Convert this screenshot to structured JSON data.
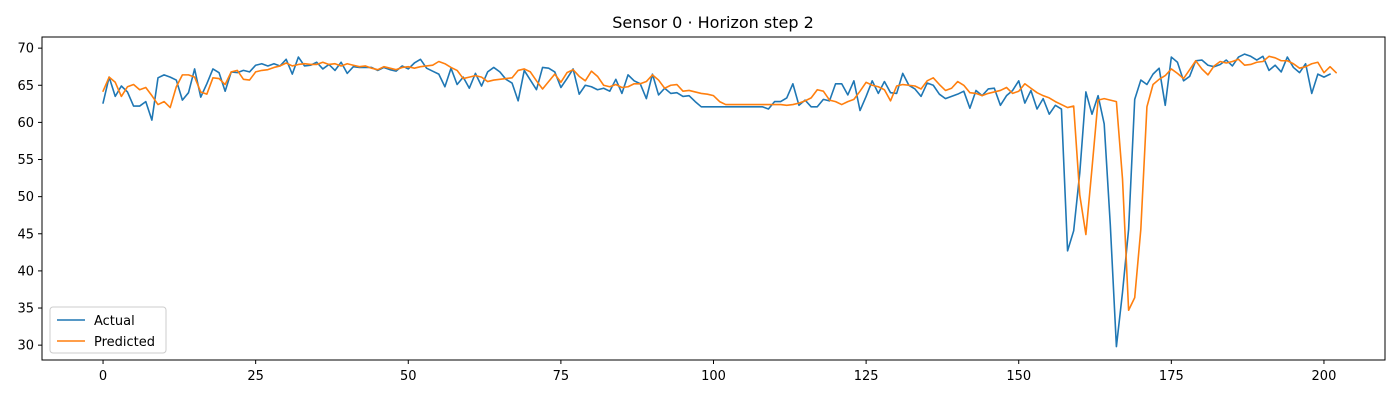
{
  "chart_data": {
    "type": "line",
    "title": "Sensor 0 · Horizon step 2",
    "xlabel": "",
    "ylabel": "",
    "xlim": [
      -10,
      210
    ],
    "ylim": [
      28.0,
      71.5
    ],
    "xticks": [
      0,
      25,
      50,
      75,
      100,
      125,
      150,
      175,
      200
    ],
    "yticks": [
      30,
      35,
      40,
      45,
      50,
      55,
      60,
      65,
      70
    ],
    "grid": false,
    "legend_position": "lower-left",
    "series": [
      {
        "name": "Actual",
        "color": "#1f77b4",
        "x_start": 0,
        "x_step": 1,
        "values": [
          62.6,
          66.1,
          63.5,
          64.9,
          64.1,
          62.2,
          62.2,
          62.8,
          60.3,
          66.0,
          66.4,
          66.1,
          65.7,
          63.0,
          64.0,
          67.2,
          63.4,
          65.2,
          67.2,
          66.7,
          64.2,
          66.8,
          66.7,
          67.0,
          66.8,
          67.7,
          67.9,
          67.6,
          67.9,
          67.6,
          68.5,
          66.5,
          68.8,
          67.6,
          67.7,
          68.1,
          67.2,
          67.8,
          67.0,
          68.1,
          66.6,
          67.5,
          67.4,
          67.4,
          67.4,
          67.0,
          67.4,
          67.1,
          66.9,
          67.6,
          67.2,
          68.0,
          68.5,
          67.3,
          66.9,
          66.5,
          64.8,
          67.3,
          65.1,
          66.1,
          64.6,
          66.6,
          64.9,
          66.8,
          67.4,
          66.8,
          65.8,
          65.3,
          62.9,
          67.0,
          65.7,
          64.4,
          67.4,
          67.3,
          66.8,
          64.7,
          65.9,
          67.2,
          63.8,
          65.0,
          64.8,
          64.4,
          64.6,
          64.2,
          65.8,
          63.9,
          66.4,
          65.6,
          65.2,
          63.2,
          66.5,
          63.7,
          64.6,
          63.9,
          64.0,
          63.5,
          63.6,
          62.8,
          62.1,
          62.1,
          62.1,
          62.1,
          62.1,
          62.1,
          62.1,
          62.1,
          62.1,
          62.1,
          62.1,
          61.8,
          62.8,
          62.8,
          63.3,
          65.2,
          62.3,
          63.0,
          62.1,
          62.1,
          63.1,
          62.9,
          65.2,
          65.2,
          63.7,
          65.6,
          61.6,
          63.5,
          65.6,
          63.9,
          65.5,
          64.0,
          63.9,
          66.6,
          65.0,
          64.5,
          63.5,
          65.3,
          65.0,
          63.8,
          63.2,
          63.5,
          63.8,
          64.2,
          61.9,
          64.3,
          63.6,
          64.5,
          64.6,
          62.3,
          63.6,
          64.3,
          65.6,
          62.6,
          64.3,
          61.8,
          63.2,
          61.1,
          62.3,
          61.8,
          42.7,
          45.4,
          53.2,
          64.1,
          61.1,
          63.6,
          59.8,
          46.2,
          29.8,
          37.1,
          45.6,
          63.1,
          65.7,
          65.1,
          66.5,
          67.3,
          62.3,
          68.8,
          68.1,
          65.6,
          66.2,
          68.3,
          68.4,
          67.7,
          67.5,
          67.8,
          68.4,
          67.6,
          68.8,
          69.2,
          68.9,
          68.4,
          68.9,
          67.0,
          67.7,
          66.8,
          68.8,
          67.4,
          66.7,
          67.9,
          63.9,
          66.5,
          66.1,
          66.5
        ]
      },
      {
        "name": "Predicted",
        "color": "#ff7f0e",
        "x_start": 0,
        "x_step": 1,
        "values": [
          64.2,
          66.1,
          65.4,
          63.5,
          64.8,
          65.1,
          64.4,
          64.7,
          63.6,
          62.4,
          62.8,
          62.0,
          64.8,
          66.4,
          66.4,
          66.1,
          64.1,
          63.8,
          66.0,
          65.9,
          65.1,
          66.8,
          67.0,
          65.8,
          65.7,
          66.8,
          67.0,
          67.1,
          67.4,
          67.6,
          68.0,
          67.6,
          67.8,
          67.9,
          67.8,
          67.8,
          68.1,
          67.8,
          67.9,
          67.6,
          67.9,
          67.7,
          67.5,
          67.6,
          67.3,
          67.1,
          67.5,
          67.3,
          67.1,
          67.4,
          67.5,
          67.3,
          67.5,
          67.6,
          67.7,
          68.2,
          67.9,
          67.4,
          67.0,
          65.9,
          66.1,
          66.3,
          66.1,
          65.5,
          65.7,
          65.8,
          65.9,
          66.0,
          67.0,
          67.2,
          66.8,
          65.6,
          64.5,
          65.5,
          66.5,
          65.4,
          66.7,
          67.1,
          66.2,
          65.6,
          66.9,
          66.2,
          65.0,
          64.8,
          65.1,
          64.7,
          64.8,
          65.2,
          65.2,
          65.5,
          66.4,
          65.7,
          64.6,
          65.0,
          65.1,
          64.2,
          64.3,
          64.1,
          63.9,
          63.8,
          63.6,
          62.8,
          62.4,
          62.4,
          62.4,
          62.4,
          62.4,
          62.4,
          62.4,
          62.4,
          62.4,
          62.4,
          62.3,
          62.4,
          62.6,
          62.9,
          63.3,
          64.4,
          64.2,
          63.0,
          62.8,
          62.4,
          62.8,
          63.1,
          64.2,
          65.4,
          65.0,
          64.8,
          64.4,
          62.9,
          64.9,
          65.1,
          65.0,
          64.9,
          64.5,
          65.6,
          66.0,
          65.1,
          64.3,
          64.6,
          65.5,
          65.0,
          64.0,
          63.9,
          63.6,
          63.9,
          64.1,
          64.3,
          64.7,
          63.9,
          64.2,
          65.2,
          64.6,
          64.0,
          63.6,
          63.3,
          62.8,
          62.4,
          62.0,
          62.2,
          50.2,
          44.9,
          53.8,
          63.0,
          63.2,
          63.0,
          62.8,
          52.4,
          34.7,
          36.4,
          45.6,
          62.1,
          65.1,
          65.8,
          66.3,
          67.2,
          66.6,
          65.9,
          67.1,
          68.3,
          67.2,
          66.4,
          67.6,
          68.2,
          68.0,
          68.2,
          68.5,
          67.7,
          67.8,
          68.1,
          68.2,
          68.9,
          68.7,
          68.3,
          68.3,
          67.9,
          67.3,
          67.5,
          67.9,
          68.1,
          66.7,
          67.5,
          66.7
        ]
      }
    ]
  }
}
